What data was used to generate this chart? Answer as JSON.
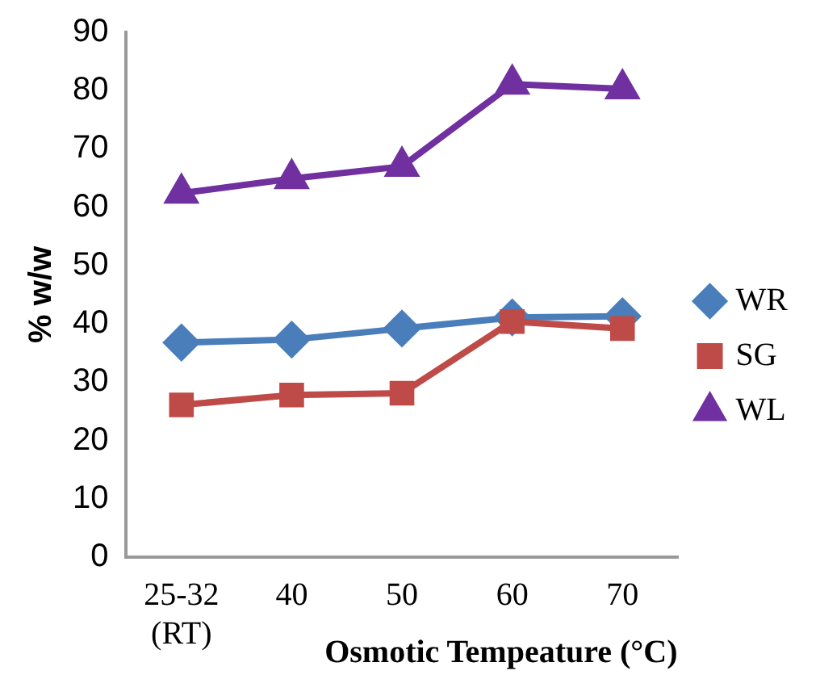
{
  "chart_data": {
    "type": "line",
    "xlabel": "Osmotic Tempeature (°C)",
    "ylabel": "% w/w",
    "categories": [
      "25-32\n(RT)",
      "40",
      "50",
      "60",
      "70"
    ],
    "ylim": [
      0,
      90
    ],
    "yticks": [
      0,
      10,
      20,
      30,
      40,
      50,
      60,
      70,
      80,
      90
    ],
    "grid": false,
    "legend": "right",
    "series": [
      {
        "name": "WR",
        "color": "#4a7ebb",
        "marker": "diamond",
        "values": [
          36.8,
          37.3,
          39.2,
          41.1,
          41.3
        ]
      },
      {
        "name": "SG",
        "color": "#be4b48",
        "marker": "square",
        "values": [
          26.1,
          27.8,
          28.1,
          40.4,
          39.2
        ]
      },
      {
        "name": "WL",
        "color": "#7030a0",
        "marker": "triangle",
        "values": [
          62.4,
          64.9,
          67.0,
          81.1,
          80.3
        ]
      }
    ]
  }
}
